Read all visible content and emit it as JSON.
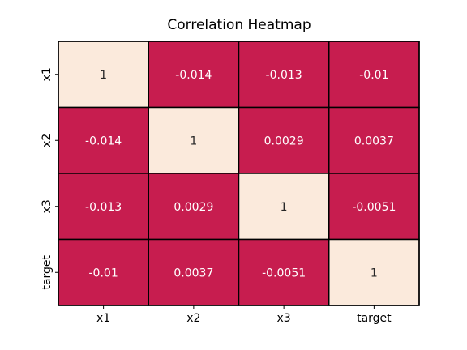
{
  "chart_data": {
    "type": "heatmap",
    "title": "Correlation Heatmap",
    "x_labels": [
      "x1",
      "x2",
      "x3",
      "target"
    ],
    "y_labels": [
      "x1",
      "x2",
      "x3",
      "target"
    ],
    "values": [
      [
        1,
        -0.014,
        -0.013,
        -0.01
      ],
      [
        -0.014,
        1,
        0.0029,
        0.0037
      ],
      [
        -0.013,
        0.0029,
        1,
        -0.0051
      ],
      [
        -0.01,
        0.0037,
        -0.0051,
        1
      ]
    ],
    "cell_labels": [
      [
        "1",
        "-0.014",
        "-0.013",
        "-0.01"
      ],
      [
        "-0.014",
        "1",
        "0.0029",
        "0.0037"
      ],
      [
        "-0.013",
        "0.0029",
        "1",
        "-0.0051"
      ],
      [
        "-0.01",
        "0.0037",
        "-0.0051",
        "1"
      ]
    ],
    "colorbar": false,
    "colors": {
      "high": "#fbeadc",
      "low": "#c71d4f",
      "high_text": "#262626",
      "low_text": "#ffffff",
      "grid": "#000000"
    }
  }
}
